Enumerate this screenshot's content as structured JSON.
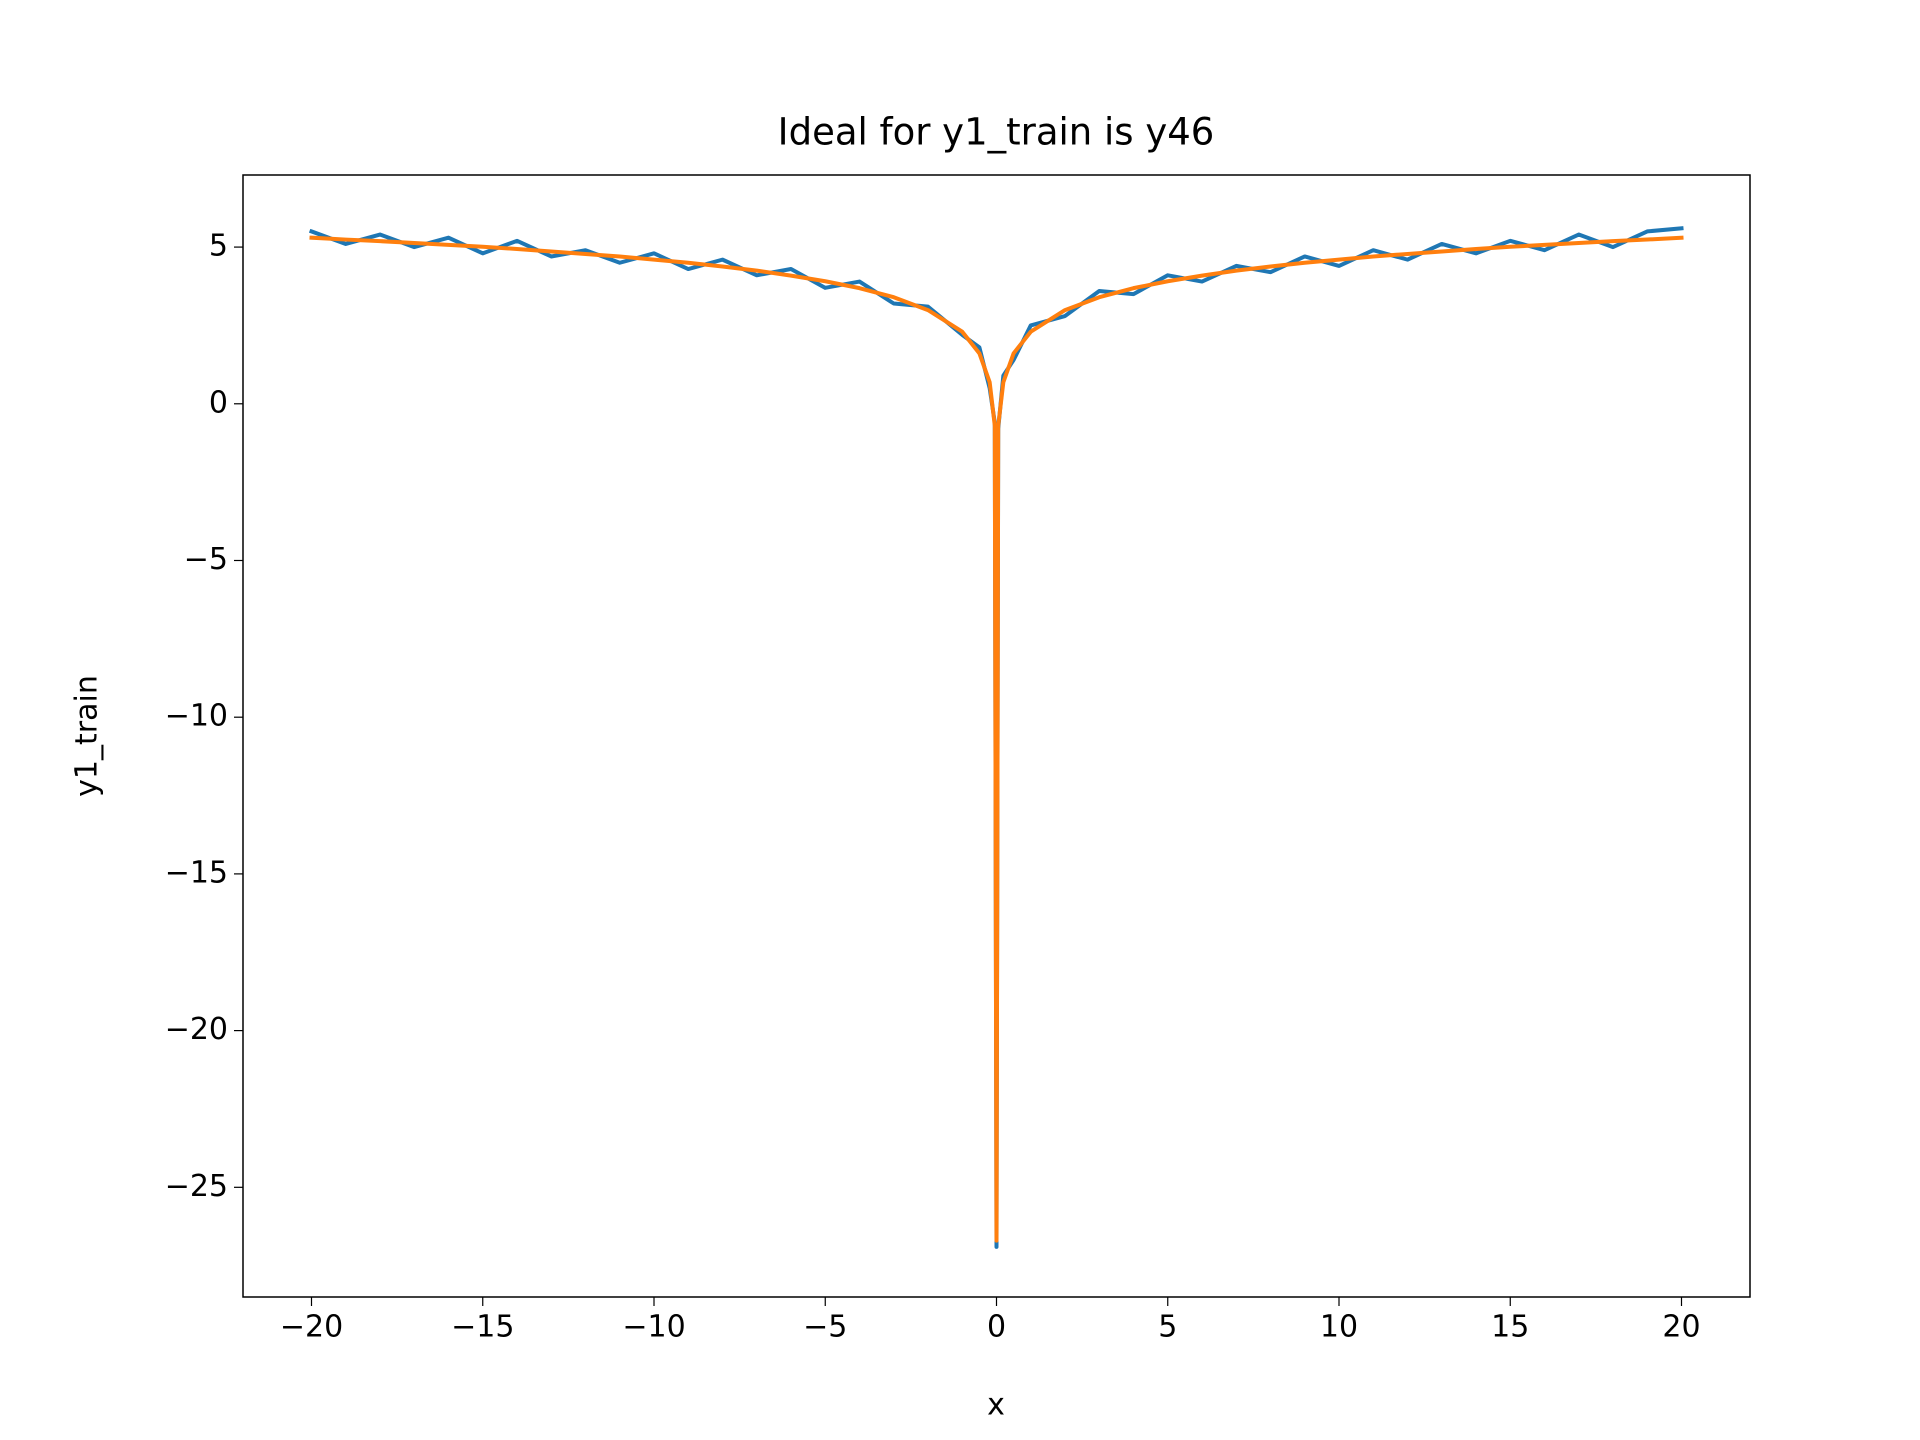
{
  "chart_data": {
    "type": "line",
    "title": "Ideal for y1_train is y46",
    "x_label": "x",
    "y_label": "y1_train",
    "x": [
      -20,
      -19,
      -18,
      -17,
      -16,
      -15,
      -14,
      -13,
      -12,
      -11,
      -10,
      -9,
      -8,
      -7,
      -6,
      -5,
      -4,
      -3,
      -2,
      -1,
      -0.5,
      -0.2,
      -0.05,
      0,
      0.05,
      0.2,
      0.5,
      1,
      2,
      3,
      4,
      5,
      6,
      7,
      8,
      9,
      10,
      11,
      12,
      13,
      14,
      15,
      16,
      17,
      18,
      19,
      20
    ],
    "series": [
      {
        "name": "y1_train",
        "color": "#1f77b4",
        "values": [
          5.5,
          5.1,
          5.4,
          5.0,
          5.3,
          4.8,
          5.2,
          4.7,
          4.9,
          4.5,
          4.8,
          4.3,
          4.6,
          4.1,
          4.3,
          3.7,
          3.9,
          3.2,
          3.1,
          2.2,
          1.8,
          0.5,
          -0.6,
          -26.9,
          -0.8,
          0.9,
          1.4,
          2.5,
          2.8,
          3.6,
          3.5,
          4.1,
          3.9,
          4.4,
          4.2,
          4.7,
          4.4,
          4.9,
          4.6,
          5.1,
          4.8,
          5.2,
          4.9,
          5.4,
          5.0,
          5.5,
          5.6
        ]
      },
      {
        "name": "y46",
        "color": "#ff7f0e",
        "values": [
          5.3,
          5.24,
          5.19,
          5.13,
          5.07,
          5.01,
          4.94,
          4.86,
          4.78,
          4.7,
          4.6,
          4.5,
          4.38,
          4.25,
          4.09,
          3.91,
          3.69,
          3.4,
          2.99,
          2.3,
          1.61,
          0.69,
          -0.7,
          -26.7,
          -0.7,
          0.69,
          1.61,
          2.3,
          2.99,
          3.4,
          3.69,
          3.91,
          4.09,
          4.25,
          4.38,
          4.5,
          4.6,
          4.7,
          4.78,
          4.86,
          4.94,
          5.01,
          5.07,
          5.13,
          5.19,
          5.24,
          5.3
        ]
      }
    ],
    "xlim": [
      -22,
      22
    ],
    "xticks": [
      {
        "value": -20,
        "label": "−20"
      },
      {
        "value": -15,
        "label": "−15"
      },
      {
        "value": -10,
        "label": "−10"
      },
      {
        "value": -5,
        "label": "−5"
      },
      0,
      5,
      10,
      15,
      20
    ],
    "ylim": [
      -28.5,
      7.3
    ],
    "yticks": [
      {
        "value": -25,
        "label": "−25"
      },
      {
        "value": -20,
        "label": "−20"
      },
      {
        "value": -15,
        "label": "−15"
      },
      {
        "value": -10,
        "label": "−10"
      },
      {
        "value": -5,
        "label": "−5"
      },
      0,
      5
    ],
    "grid": false
  }
}
